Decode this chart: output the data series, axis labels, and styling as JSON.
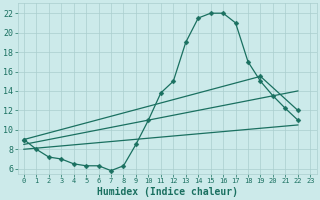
{
  "xlabel": "Humidex (Indice chaleur)",
  "bg_color": "#cceaea",
  "grid_color": "#aacece",
  "line_color": "#1a7060",
  "xlim": [
    -0.5,
    23.5
  ],
  "ylim": [
    5.5,
    23
  ],
  "xticks": [
    0,
    1,
    2,
    3,
    4,
    5,
    6,
    7,
    8,
    9,
    10,
    11,
    12,
    13,
    14,
    15,
    16,
    17,
    18,
    19,
    20,
    21,
    22,
    23
  ],
  "yticks": [
    6,
    8,
    10,
    12,
    14,
    16,
    18,
    20,
    22
  ],
  "curve_x": [
    0,
    1,
    2,
    3,
    4,
    5,
    6,
    7,
    8,
    9,
    10,
    11,
    12,
    13,
    14,
    15,
    16,
    17,
    18,
    19,
    20,
    21,
    22
  ],
  "curve_y": [
    9.0,
    8.0,
    7.2,
    7.0,
    6.5,
    6.3,
    6.3,
    5.8,
    6.3,
    8.5,
    11.0,
    13.8,
    15.0,
    19.0,
    21.5,
    22.0,
    22.0,
    21.0,
    17.0,
    15.0,
    13.5,
    12.2,
    11.0
  ],
  "line2_x": [
    0,
    19,
    22
  ],
  "line2_y": [
    9.0,
    15.5,
    12.0
  ],
  "line3_x": [
    0,
    22
  ],
  "line3_y": [
    8.5,
    14.0
  ],
  "line4_x": [
    0,
    22
  ],
  "line4_y": [
    8.0,
    10.5
  ],
  "markersize": 2.5,
  "linewidth": 0.9
}
